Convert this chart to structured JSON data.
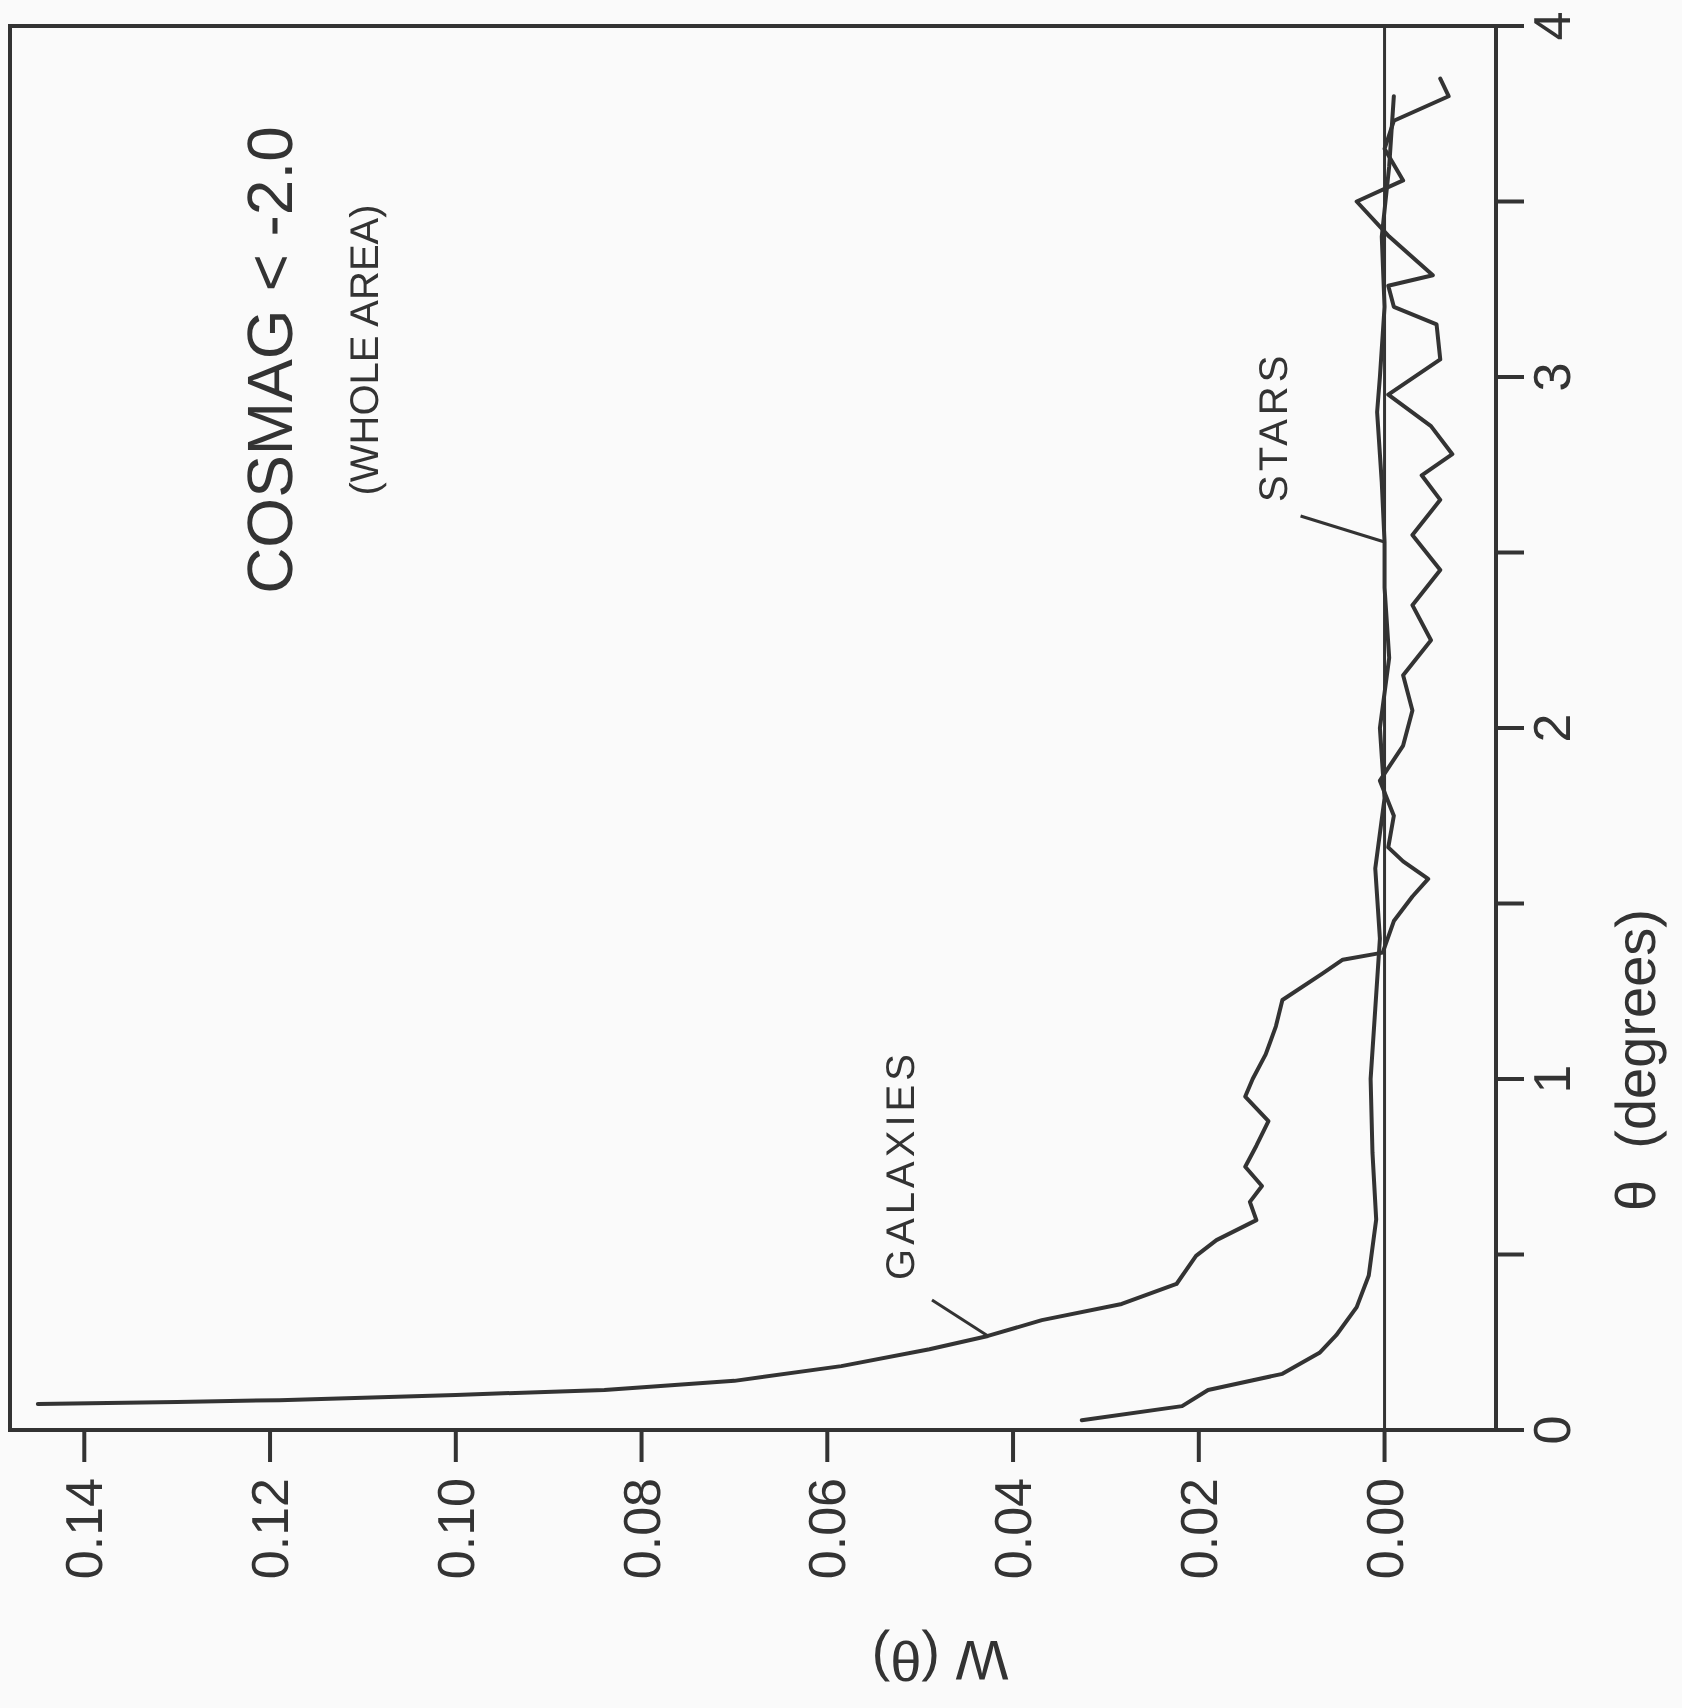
{
  "chart_data": {
    "type": "line",
    "title": "COSMAG < -2.0",
    "subtitle": "(WHOLE AREA)",
    "xlabel": "W (θ)",
    "ylabel": "θ  (degrees)",
    "xlim": [
      0.148,
      -0.012
    ],
    "xticks": [
      0.14,
      0.12,
      {
        "value": 0.1,
        "label": "0.10"
      },
      0.08,
      0.06,
      0.04,
      0.02,
      {
        "value": 0,
        "label": "0.00"
      }
    ],
    "ylim": [
      0,
      4
    ],
    "yticks": [
      0,
      {
        "value": 0.5,
        "label": null
      },
      1,
      {
        "value": 1.5,
        "label": null
      },
      2,
      {
        "value": 2.5,
        "label": null
      },
      3,
      {
        "value": 3.5,
        "label": null
      },
      4
    ],
    "grid": false,
    "legend": false,
    "marker": "none",
    "line_style": "solid",
    "ref_lines": [
      {
        "axis": "x",
        "value": 0,
        "color": "#333333"
      }
    ],
    "series": [
      {
        "name": "GALAXIES",
        "color": "#333333",
        "values": [
          0.074,
          0.08,
          0.085,
          0.1,
          0.114,
          0.14,
          0.182,
          0.23,
          0.268,
          0.313,
          0.359,
          0.416,
          0.496,
          0.541,
          0.598,
          0.65,
          0.695,
          0.75,
          0.81,
          0.88,
          0.95,
          1.0,
          1.07,
          1.15,
          1.225,
          1.3,
          1.34,
          1.36,
          1.45,
          1.52,
          1.57,
          1.62,
          1.66,
          1.75,
          1.85,
          1.95,
          2.05,
          2.15,
          2.25,
          2.35,
          2.45,
          2.55,
          2.65,
          2.72,
          2.78,
          2.86,
          2.95,
          3.05,
          3.15,
          3.2,
          3.26,
          3.29,
          3.4,
          3.5,
          3.56,
          3.65,
          3.73,
          3.8,
          3.85
        ],
        "x": [
          0.145,
          0.13,
          0.119,
          0.1,
          0.084,
          0.07,
          0.0585,
          0.049,
          0.0427,
          0.0369,
          0.0283,
          0.0224,
          0.0203,
          0.0181,
          0.0138,
          0.0145,
          0.0132,
          0.015,
          0.0138,
          0.0125,
          0.015,
          0.0142,
          0.0128,
          0.0117,
          0.011,
          0.0067,
          0.0045,
          0.0002,
          -0.001,
          -0.003,
          -0.0047,
          -0.002,
          -0.0004,
          -0.001,
          0.0005,
          -0.002,
          -0.003,
          -0.002,
          -0.005,
          -0.003,
          -0.006,
          -0.003,
          -0.006,
          -0.004,
          -0.0073,
          -0.005,
          -0.0004,
          -0.006,
          -0.0056,
          -0.001,
          -0.0004,
          -0.0052,
          -0.0005,
          0.003,
          -0.002,
          0,
          -0.001,
          -0.0069,
          -0.006
        ]
      },
      {
        "name": "STARS",
        "color": "#333333",
        "values": [
          0.028,
          0.068,
          0.114,
          0.16,
          0.22,
          0.27,
          0.35,
          0.44,
          0.6,
          0.79,
          1.0,
          1.2,
          1.4,
          1.6,
          1.8,
          2.0,
          2.2,
          2.4,
          2.53,
          2.7,
          2.9,
          3.0,
          3.2,
          3.4,
          3.6,
          3.8
        ],
        "x": [
          0.0326,
          0.0218,
          0.019,
          0.011,
          0.007,
          0.0052,
          0.003,
          0.0017,
          0.0009,
          0.0013,
          0.0015,
          0.001,
          0.0005,
          0.001,
          0,
          0.0005,
          -0.0005,
          0,
          0,
          0.0003,
          0.0008,
          0.0005,
          0,
          0.0003,
          -0.0005,
          -0.001
        ]
      }
    ]
  }
}
